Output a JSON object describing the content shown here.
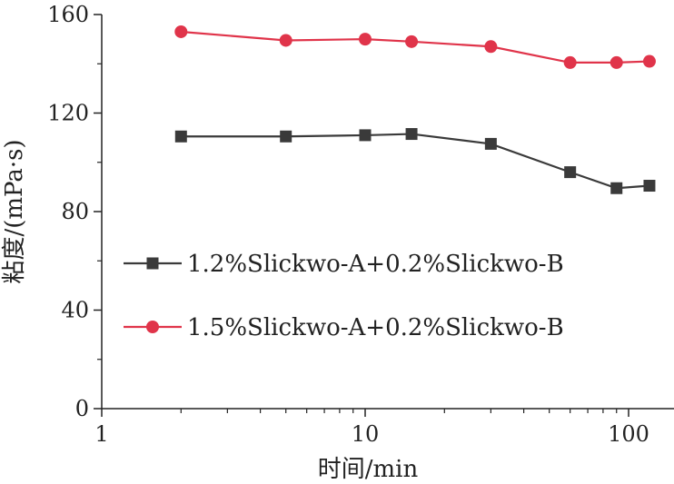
{
  "chart_data": {
    "type": "line",
    "x_scale": "log",
    "xlim": [
      1,
      130
    ],
    "ylim": [
      0,
      160
    ],
    "xlabel": "时间/min",
    "ylabel": "粘度/(mPa·s)",
    "x_ticks": [
      1,
      10,
      100
    ],
    "x_tick_labels": [
      "1",
      "10",
      "100"
    ],
    "y_ticks": [
      0,
      40,
      80,
      120,
      160
    ],
    "y_tick_labels": [
      "0",
      "40",
      "80",
      "120",
      "160"
    ],
    "legend_position": "left-middle",
    "series": [
      {
        "name": "1.2%Slickwo-A+0.2%Slickwo-B",
        "marker": "square",
        "color": "#3a3a3a",
        "x": [
          2,
          5,
          10,
          15,
          30,
          60,
          90,
          120
        ],
        "y": [
          110.5,
          110.5,
          111,
          111.5,
          107.5,
          96,
          89.5,
          90.5
        ]
      },
      {
        "name": "1.5%Slickwo-A+0.2%Slickwo-B",
        "marker": "circle",
        "color": "#e0344a",
        "x": [
          2,
          5,
          10,
          15,
          30,
          60,
          90,
          120
        ],
        "y": [
          153,
          149.5,
          150,
          149,
          147,
          140.5,
          140.5,
          141
        ]
      }
    ]
  }
}
